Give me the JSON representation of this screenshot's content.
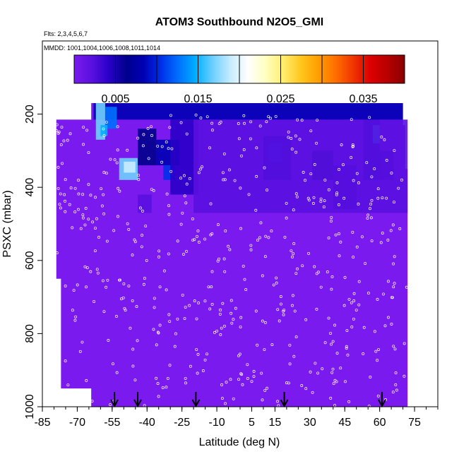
{
  "chart_data": {
    "type": "heatmap",
    "title": "ATOM3 Southbound N2O5_GMI",
    "subtitle_flights": "Flts: 2,3,4,5,6,7",
    "subtitle_dates": "MMDD: 1001,1004,1006,1008,1011,1014",
    "xlabel": "Latitude (deg N)",
    "ylabel": "PSXC (mbar)",
    "xlim": [
      -85,
      85
    ],
    "ylim": [
      1000,
      0
    ],
    "x_ticks": [
      "-85",
      "-70",
      "-55",
      "-40",
      "-25",
      "-10",
      "5",
      "15",
      "30",
      "45",
      "60",
      "75"
    ],
    "x_tick_values": [
      -85,
      -70,
      -55,
      -40,
      -25,
      -10,
      5,
      15,
      30,
      45,
      60,
      75
    ],
    "y_ticks": [
      "200",
      "400",
      "600",
      "800",
      "1000"
    ],
    "y_tick_values": [
      200,
      400,
      600,
      800,
      1000
    ],
    "colorbar": {
      "range": [
        0,
        0.04
      ],
      "tick_labels": [
        "0.005",
        "0.015",
        "0.025",
        "0.035"
      ],
      "tick_values": [
        0.005,
        0.015,
        0.025,
        0.035
      ],
      "colors": [
        "#7a1aee",
        "#5a10e0",
        "#2a00c8",
        "#00008c",
        "#0000b4",
        "#0030e8",
        "#0070ff",
        "#00b0ff",
        "#70d0ff",
        "#c8ecff",
        "#ffffff",
        "#ffffc0",
        "#ffee70",
        "#ffc820",
        "#ffa000",
        "#ff7000",
        "#f03800",
        "#dd0000",
        "#b80000",
        "#8a0000"
      ]
    },
    "data_extent": {
      "lat_min": -79,
      "lat_max": 72,
      "p_top": 170,
      "p_bottom": 1000
    },
    "background_value": 0.0005,
    "elevated_regions": [
      {
        "lat": [
          -63,
          70
        ],
        "p": [
          170,
          215
        ],
        "value": 0.008
      },
      {
        "lat": [
          -62,
          -58
        ],
        "p": [
          170,
          270
        ],
        "value": 0.017
      },
      {
        "lat": [
          -58,
          -53
        ],
        "p": [
          180,
          240
        ],
        "value": 0.012
      },
      {
        "lat": [
          -60,
          -57
        ],
        "p": [
          230,
          260
        ],
        "value": 0.014
      },
      {
        "lat": [
          -52,
          -44
        ],
        "p": [
          320,
          380
        ],
        "value": 0.016
      },
      {
        "lat": [
          -50,
          -45
        ],
        "p": [
          330,
          360
        ],
        "value": 0.019
      },
      {
        "lat": [
          -44,
          -36
        ],
        "p": [
          240,
          340
        ],
        "value": 0.007
      },
      {
        "lat": [
          -36,
          -26
        ],
        "p": [
          270,
          340
        ],
        "value": 0.009
      },
      {
        "lat": [
          -33,
          -28
        ],
        "p": [
          340,
          380
        ],
        "value": 0.011
      },
      {
        "lat": [
          -30,
          -18
        ],
        "p": [
          215,
          420
        ],
        "value": 0.004
      },
      {
        "lat": [
          -44,
          -38
        ],
        "p": [
          420,
          470
        ],
        "value": 0.003
      },
      {
        "lat": [
          10,
          22
        ],
        "p": [
          260,
          380
        ],
        "value": 0.009
      },
      {
        "lat": [
          12,
          18
        ],
        "p": [
          280,
          330
        ],
        "value": 0.011
      },
      {
        "lat": [
          31,
          40
        ],
        "p": [
          300,
          380
        ],
        "value": 0.006
      },
      {
        "lat": [
          40,
          50
        ],
        "p": [
          340,
          460
        ],
        "value": 0.004
      },
      {
        "lat": [
          53,
          60
        ],
        "p": [
          215,
          380
        ],
        "value": 0.009
      },
      {
        "lat": [
          57,
          60
        ],
        "p": [
          230,
          280
        ],
        "value": 0.015
      },
      {
        "lat": [
          60,
          66
        ],
        "p": [
          300,
          380
        ],
        "value": 0.005
      },
      {
        "lat": [
          -20,
          72
        ],
        "p": [
          215,
          470
        ],
        "value": 0.002
      }
    ],
    "flight_markers_lat": [
      -54,
      -44,
      -19,
      19,
      61
    ]
  }
}
